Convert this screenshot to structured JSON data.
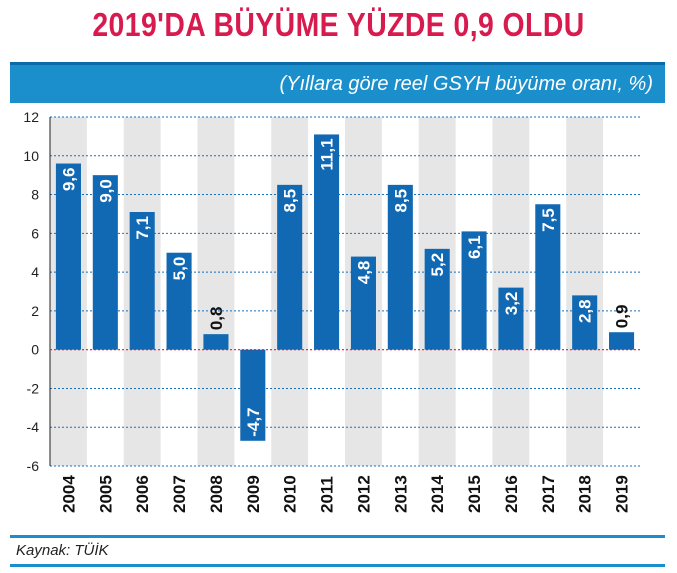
{
  "header": {
    "title": "2019'DA BÜYÜME YÜZDE 0,9 OLDU",
    "subtitle": "(Yıllara göre reel GSYH büyüme oranı, %)"
  },
  "footer": {
    "source": "Kaynak: TÜİK"
  },
  "colors": {
    "title": "#d81b4e",
    "banner": "#1a8fcc",
    "bar": "#1168b3",
    "stripe": "#e6e6e6",
    "grid": "#1a6fb8",
    "zero_line": "#d81b4e"
  },
  "chart_data": {
    "type": "bar",
    "title": "2019'DA BÜYÜME YÜZDE 0,9 OLDU",
    "subtitle": "(Yıllara göre reel GSYH büyüme oranı, %)",
    "categories": [
      "2004",
      "2005",
      "2006",
      "2007",
      "2008",
      "2009",
      "2010",
      "2011",
      "2012",
      "2013",
      "2014",
      "2015",
      "2016",
      "2017",
      "2018",
      "2019"
    ],
    "values": [
      9.6,
      9.0,
      7.1,
      5.0,
      0.8,
      -4.7,
      8.5,
      11.1,
      4.8,
      8.5,
      5.2,
      6.1,
      3.2,
      7.5,
      2.8,
      0.9
    ],
    "data_labels": [
      "9,6",
      "9,0",
      "7,1",
      "5,0",
      "0,8",
      "-4,7",
      "8,5",
      "11,1",
      "4,8",
      "8,5",
      "5,2",
      "6,1",
      "3,2",
      "7,5",
      "2,8",
      "0,9"
    ],
    "yticks": [
      12,
      10,
      8,
      6,
      4,
      2,
      0,
      -2,
      -4,
      -6
    ],
    "ylim": [
      -6,
      12
    ],
    "grid": true,
    "xlabel": "",
    "ylabel": ""
  }
}
